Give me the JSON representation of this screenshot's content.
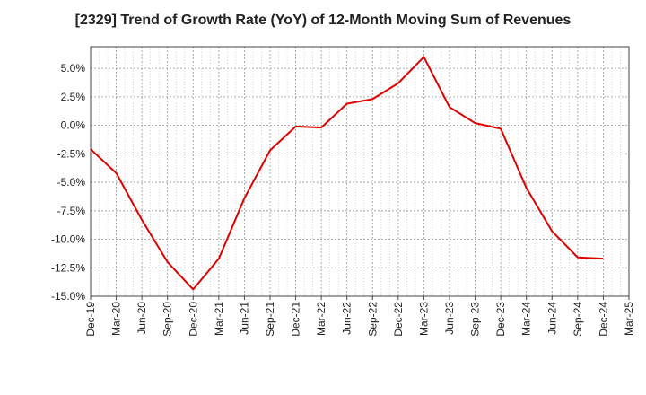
{
  "chart_data": {
    "type": "line",
    "title": "[2329]  Trend of Growth Rate (YoY) of 12-Month Moving Sum of Revenues",
    "xlabel": "",
    "ylabel": "",
    "x_ticks": [
      "Dec-19",
      "Mar-20",
      "Jun-20",
      "Sep-20",
      "Dec-20",
      "Mar-21",
      "Jun-21",
      "Sep-21",
      "Dec-21",
      "Mar-22",
      "Jun-22",
      "Sep-22",
      "Dec-22",
      "Mar-23",
      "Jun-23",
      "Sep-23",
      "Dec-23",
      "Mar-24",
      "Jun-24",
      "Sep-24",
      "Dec-24",
      "Mar-25"
    ],
    "y_ticks": [
      "5.0%",
      "2.5%",
      "0.0%",
      "-2.5%",
      "-5.0%",
      "-7.5%",
      "-10.0%",
      "-12.5%",
      "-15.0%"
    ],
    "y_tick_values": [
      5.0,
      2.5,
      0.0,
      -2.5,
      -5.0,
      -7.5,
      -10.0,
      -12.5,
      -15.0
    ],
    "ylim": [
      -15.0,
      6.9
    ],
    "grid": true,
    "line_color": "#e00000",
    "series": [
      {
        "values": [
          -2.1,
          -4.2,
          -8.3,
          -12.0,
          -14.4,
          -11.7,
          -6.4,
          -2.2,
          -0.1,
          -0.2,
          1.9,
          2.3,
          3.7,
          6.0,
          1.6,
          0.2,
          -0.3,
          -5.5,
          -9.3,
          -11.6,
          -11.7
        ]
      }
    ]
  }
}
